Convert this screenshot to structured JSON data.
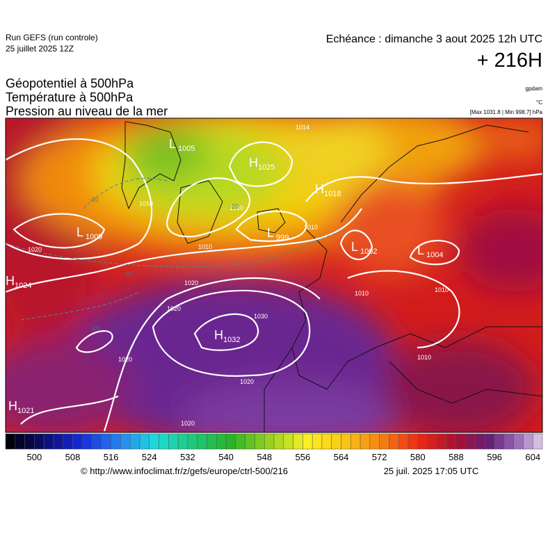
{
  "header": {
    "run": "Run GEFS (run controle)",
    "date": "25 juillet 2025 12Z",
    "echeance": "Echéance : dimanche 3 aout 2025 12h UTC",
    "lead": "+ 216H"
  },
  "fields": [
    "Géopotentiel à 500hPa",
    "Température à 500hPa",
    "Pression au niveau de la mer"
  ],
  "units": [
    "gpdam",
    "°C",
    "[Max 1031.8 | Min 998.7] hPa"
  ],
  "pressure_centers": [
    {
      "type": "L",
      "value": 1005
    },
    {
      "type": "H",
      "value": 1025
    },
    {
      "type": "H",
      "value": 1018
    },
    {
      "type": "L",
      "value": 1009
    },
    {
      "type": "L",
      "value": 999
    },
    {
      "type": "L",
      "value": 1002
    },
    {
      "type": "L",
      "value": 1004
    },
    {
      "type": "H",
      "value": 1024
    },
    {
      "type": "H",
      "value": 1032
    },
    {
      "type": "H",
      "value": 1021
    }
  ],
  "isobar_labels": [
    1014,
    1010,
    1010,
    1010,
    1010,
    1010,
    1020,
    1020,
    1020,
    1020,
    1020,
    1020,
    1030,
    1010,
    1010
  ],
  "temperature_labels": [
    -20,
    -20,
    -20,
    -10
  ],
  "colorbar": {
    "range": [
      494,
      606
    ],
    "step": 2,
    "ticks": [
      500,
      508,
      516,
      524,
      532,
      540,
      548,
      556,
      564,
      572,
      580,
      588,
      596,
      604
    ]
  },
  "footer": {
    "url": "© http://www.infoclimat.fr/z/gefs/europe/ctrl-500/216",
    "generated": "25 juil. 2025 17:05 UTC"
  }
}
